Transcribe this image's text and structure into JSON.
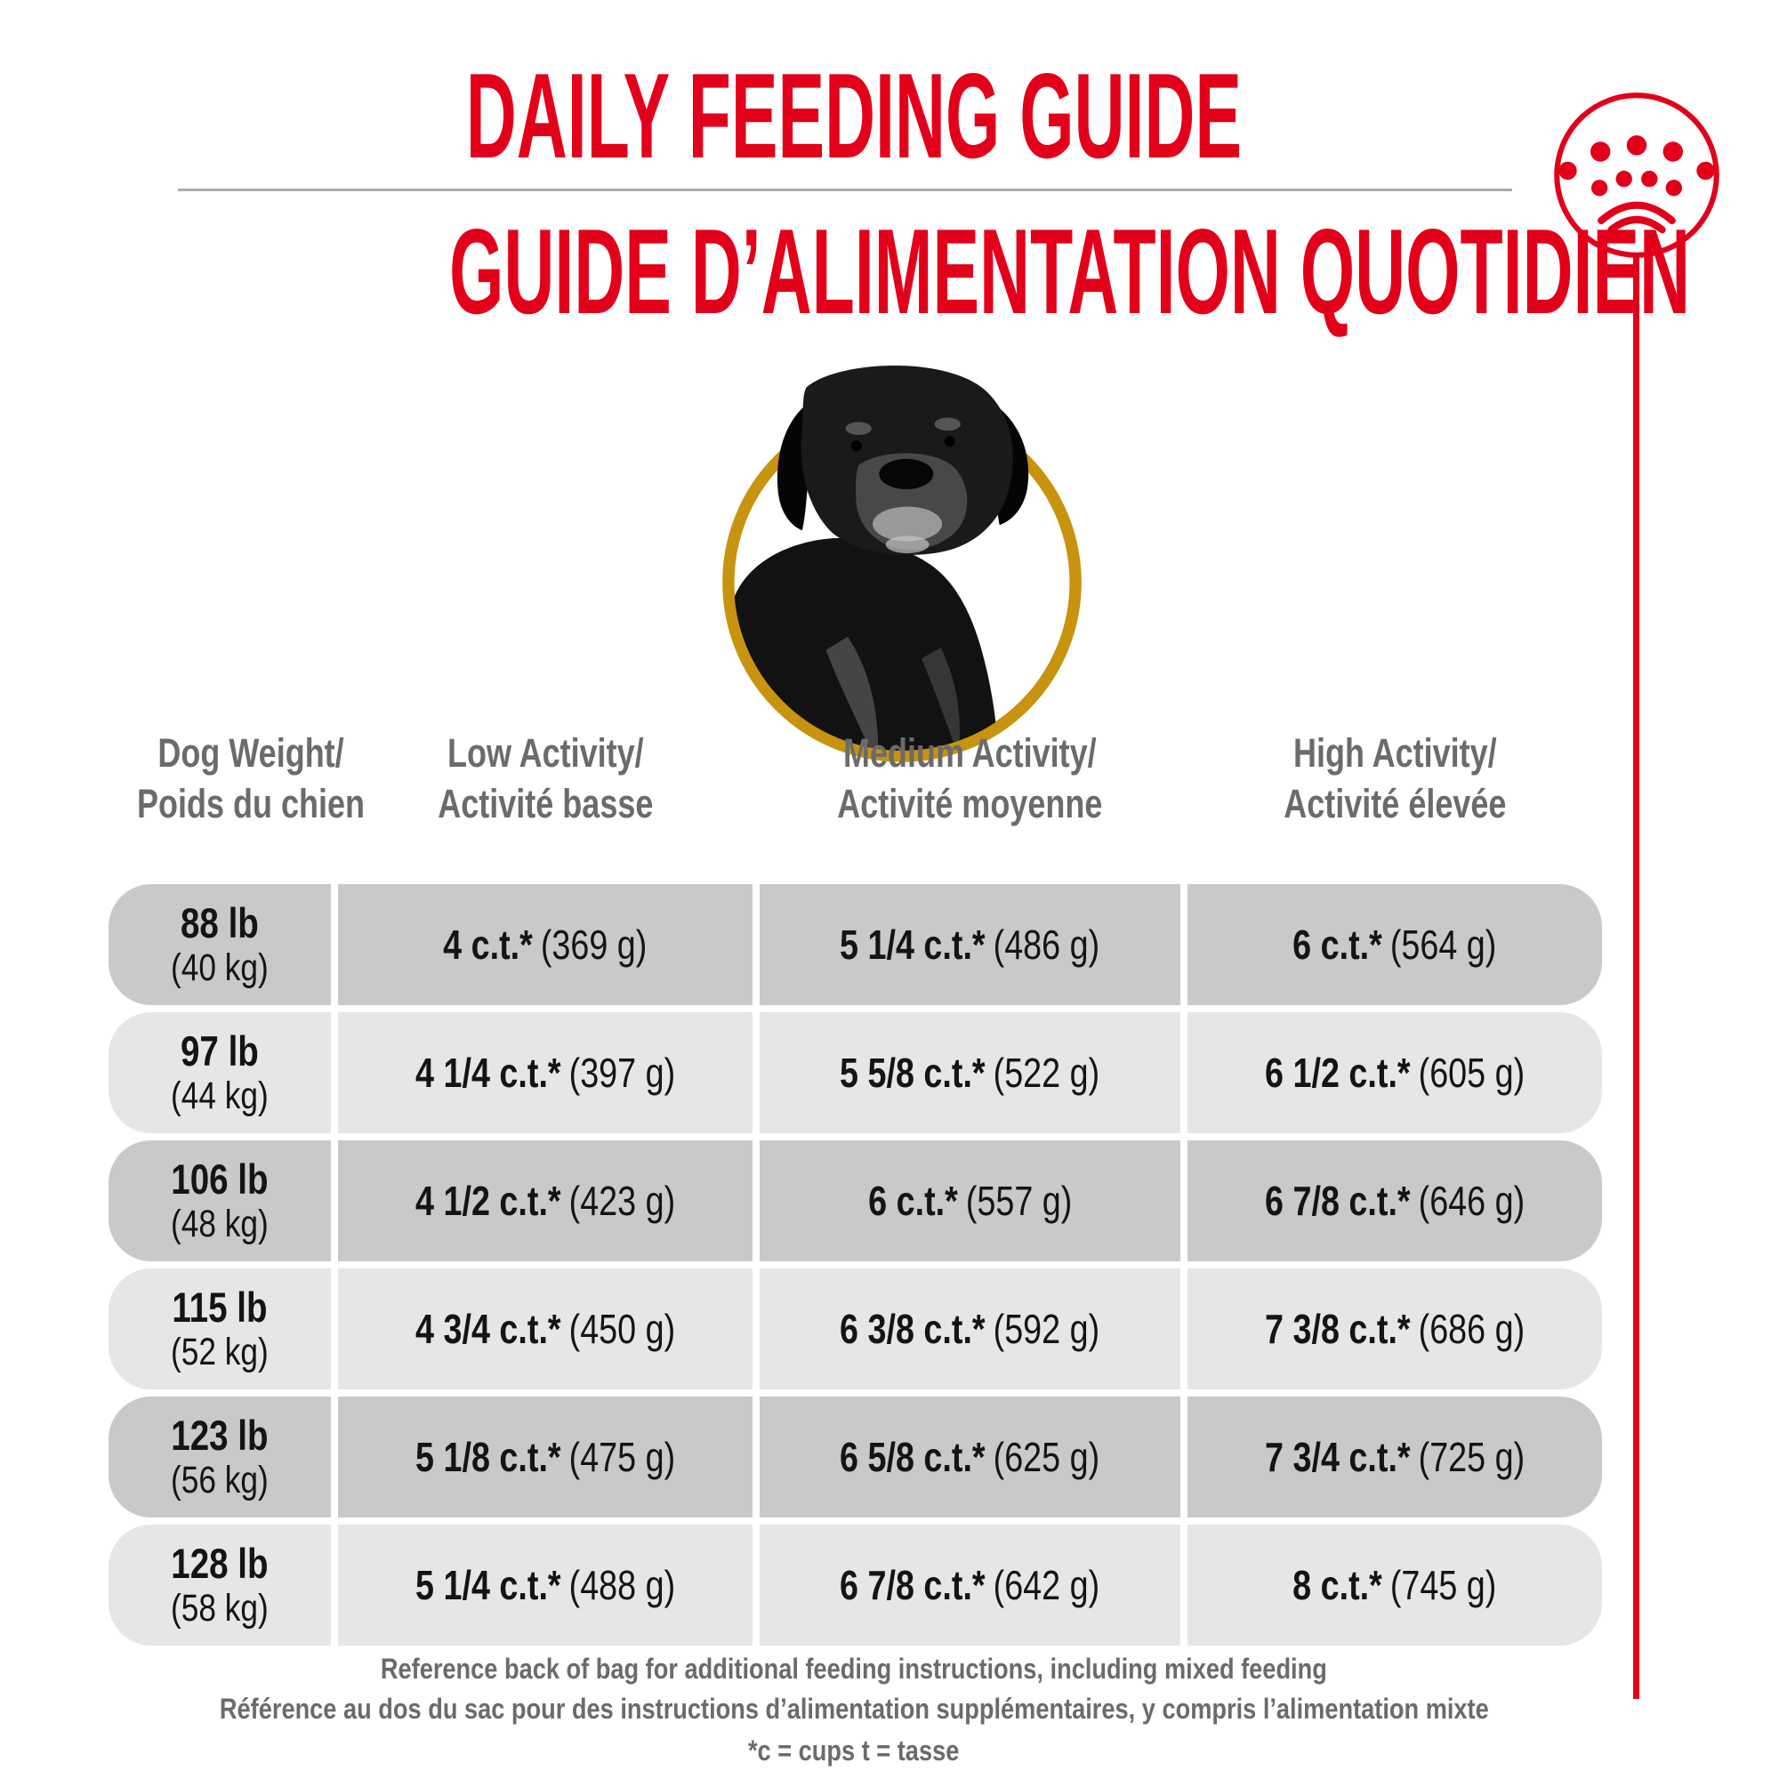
{
  "titles": {
    "english": "DAILY FEEDING GUIDE",
    "french": "GUIDE D’ALIMENTATION QUOTIDIEN"
  },
  "badge": {
    "icon": "rottweiler-dog-photo",
    "ring_color": "#c8930f"
  },
  "logo": {
    "icon": "royal-canin-crown",
    "color": "#e2001a"
  },
  "table": {
    "headers": [
      {
        "line1": "Dog Weight/",
        "line2": "Poids du chien"
      },
      {
        "line1": "Low Activity/",
        "line2": "Activité basse"
      },
      {
        "line1": "Medium Activity/",
        "line2": "Activité moyenne"
      },
      {
        "line1": "High Activity/",
        "line2": "Activité élevée"
      }
    ],
    "rows": [
      {
        "weight_lb": "88 lb",
        "weight_kg": "(40 kg)",
        "low_ct": "4 c.t.*",
        "low_g": "(369 g)",
        "medium_ct": "5 1/4 c.t.*",
        "medium_g": "(486 g)",
        "high_ct": "6 c.t.*",
        "high_g": "(564 g)"
      },
      {
        "weight_lb": "97 lb",
        "weight_kg": "(44 kg)",
        "low_ct": "4 1/4 c.t.*",
        "low_g": "(397 g)",
        "medium_ct": "5 5/8 c.t.*",
        "medium_g": "(522 g)",
        "high_ct": "6 1/2 c.t.*",
        "high_g": "(605 g)"
      },
      {
        "weight_lb": "106 lb",
        "weight_kg": "(48 kg)",
        "low_ct": "4 1/2 c.t.*",
        "low_g": "(423 g)",
        "medium_ct": "6 c.t.*",
        "medium_g": "(557 g)",
        "high_ct": "6 7/8 c.t.*",
        "high_g": "(646 g)"
      },
      {
        "weight_lb": "115 lb",
        "weight_kg": "(52 kg)",
        "low_ct": "4 3/4 c.t.*",
        "low_g": "(450 g)",
        "medium_ct": "6 3/8 c.t.*",
        "medium_g": "(592 g)",
        "high_ct": "7 3/8 c.t.*",
        "high_g": "(686 g)"
      },
      {
        "weight_lb": "123 lb",
        "weight_kg": "(56 kg)",
        "low_ct": "5 1/8 c.t.*",
        "low_g": "(475 g)",
        "medium_ct": "6 5/8 c.t.*",
        "medium_g": "(625 g)",
        "high_ct": "7 3/4 c.t.*",
        "high_g": "(725 g)"
      },
      {
        "weight_lb": "128 lb",
        "weight_kg": "(58 kg)",
        "low_ct": "5 1/4 c.t.*",
        "low_g": "(488 g)",
        "medium_ct": "6 7/8 c.t.*",
        "medium_g": "(642 g)",
        "high_ct": "8 c.t.*",
        "high_g": "(745 g)"
      }
    ]
  },
  "footer": {
    "line1": "Reference back of bag for additional feeding instructions, including mixed feeding",
    "line2": "Référence au dos du sac pour des instructions d’alimentation supplémentaires, y compris l’alimentation mixte",
    "line3": "*c = cups t = tasse"
  },
  "colors": {
    "brand_red": "#e2001a",
    "gold_ring": "#c8930f",
    "row_dark": "#c9c9c9",
    "row_light": "#e6e6e6",
    "text_gray": "#6b6b6b",
    "text_black": "#141414",
    "divider_gray": "#ababab"
  }
}
